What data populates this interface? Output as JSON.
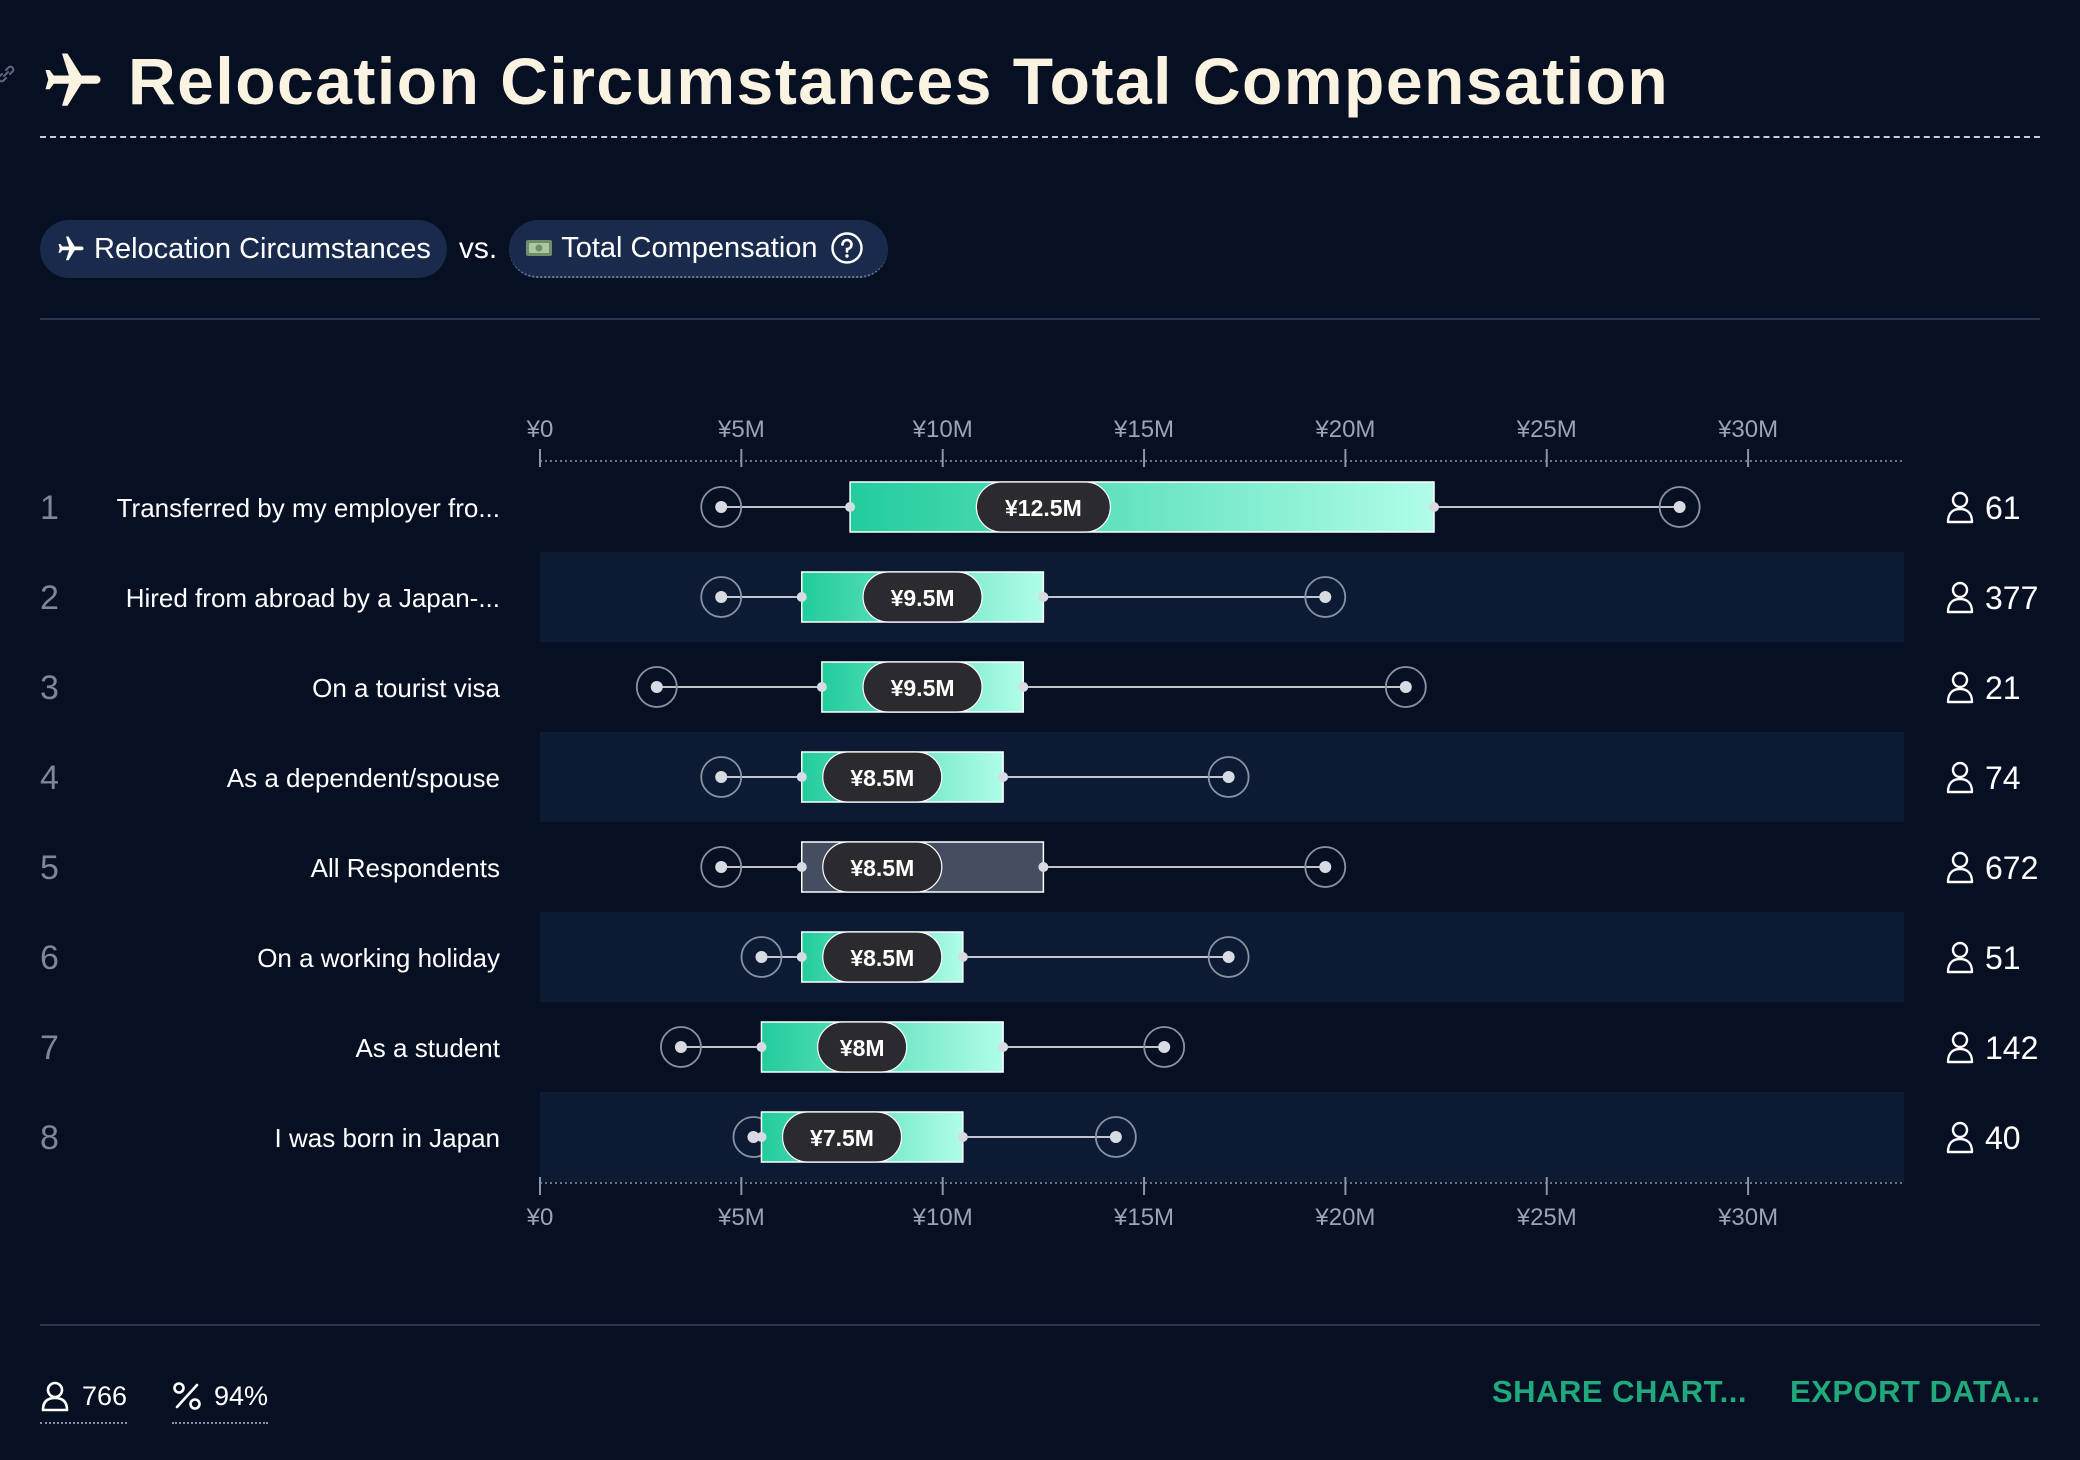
{
  "header": {
    "title": "Relocation Circumstances Total Compensation",
    "icon": "airplane-icon"
  },
  "comparison": {
    "dimension_label": "Relocation Circumstances",
    "dimension_icon": "airplane-icon",
    "vs_label": "vs.",
    "metric_label": "Total Compensation",
    "metric_icon": "money-icon"
  },
  "colors": {
    "background": "#070f22",
    "box_start": "#22cc9c",
    "box_end": "#b0fde8",
    "baseline_box": "#454e60",
    "stripe": "#0d1a34",
    "accent_action": "#1fa97c"
  },
  "chart_data": {
    "type": "box",
    "title": "Relocation Circumstances Total Compensation",
    "x_ticks": [
      "¥0",
      "¥5M",
      "¥10M",
      "¥15M",
      "¥20M",
      "¥25M",
      "¥30M"
    ],
    "xlim": [
      0,
      34
    ],
    "x_unit": "¥M",
    "rows": [
      {
        "rank": "1",
        "label": "Transferred by my employer fro...",
        "min": 4.5,
        "q1": 7.7,
        "median": 12.5,
        "median_label": "¥12.5M",
        "q3": 22.2,
        "max": 28.3,
        "count": "61",
        "highlight": false
      },
      {
        "rank": "2",
        "label": "Hired from abroad by a Japan-...",
        "min": 4.5,
        "q1": 6.5,
        "median": 9.5,
        "median_label": "¥9.5M",
        "q3": 12.5,
        "max": 19.5,
        "count": "377",
        "highlight": false
      },
      {
        "rank": "3",
        "label": "On a tourist visa",
        "min": 2.9,
        "q1": 7.0,
        "median": 9.5,
        "median_label": "¥9.5M",
        "q3": 12.0,
        "max": 21.5,
        "count": "21",
        "highlight": false
      },
      {
        "rank": "4",
        "label": "As a dependent/spouse",
        "min": 4.5,
        "q1": 6.5,
        "median": 8.5,
        "median_label": "¥8.5M",
        "q3": 11.5,
        "max": 17.1,
        "count": "74",
        "highlight": false
      },
      {
        "rank": "5",
        "label": "All Respondents",
        "min": 4.5,
        "q1": 6.5,
        "median": 8.5,
        "median_label": "¥8.5M",
        "q3": 12.5,
        "max": 19.5,
        "count": "672",
        "highlight": true
      },
      {
        "rank": "6",
        "label": "On a working holiday",
        "min": 5.5,
        "q1": 6.5,
        "median": 8.5,
        "median_label": "¥8.5M",
        "q3": 10.5,
        "max": 17.1,
        "count": "51",
        "highlight": false
      },
      {
        "rank": "7",
        "label": "As a student",
        "min": 3.5,
        "q1": 5.5,
        "median": 8.0,
        "median_label": "¥8M",
        "q3": 11.5,
        "max": 15.5,
        "count": "142",
        "highlight": false
      },
      {
        "rank": "8",
        "label": "I was born in Japan",
        "min": 5.3,
        "q1": 5.5,
        "median": 7.5,
        "median_label": "¥7.5M",
        "q3": 10.5,
        "max": 14.3,
        "count": "40",
        "highlight": false
      }
    ]
  },
  "footer": {
    "respondents": "766",
    "percent": "94%",
    "share_label": "SHARE CHART...",
    "export_label": "EXPORT DATA..."
  }
}
